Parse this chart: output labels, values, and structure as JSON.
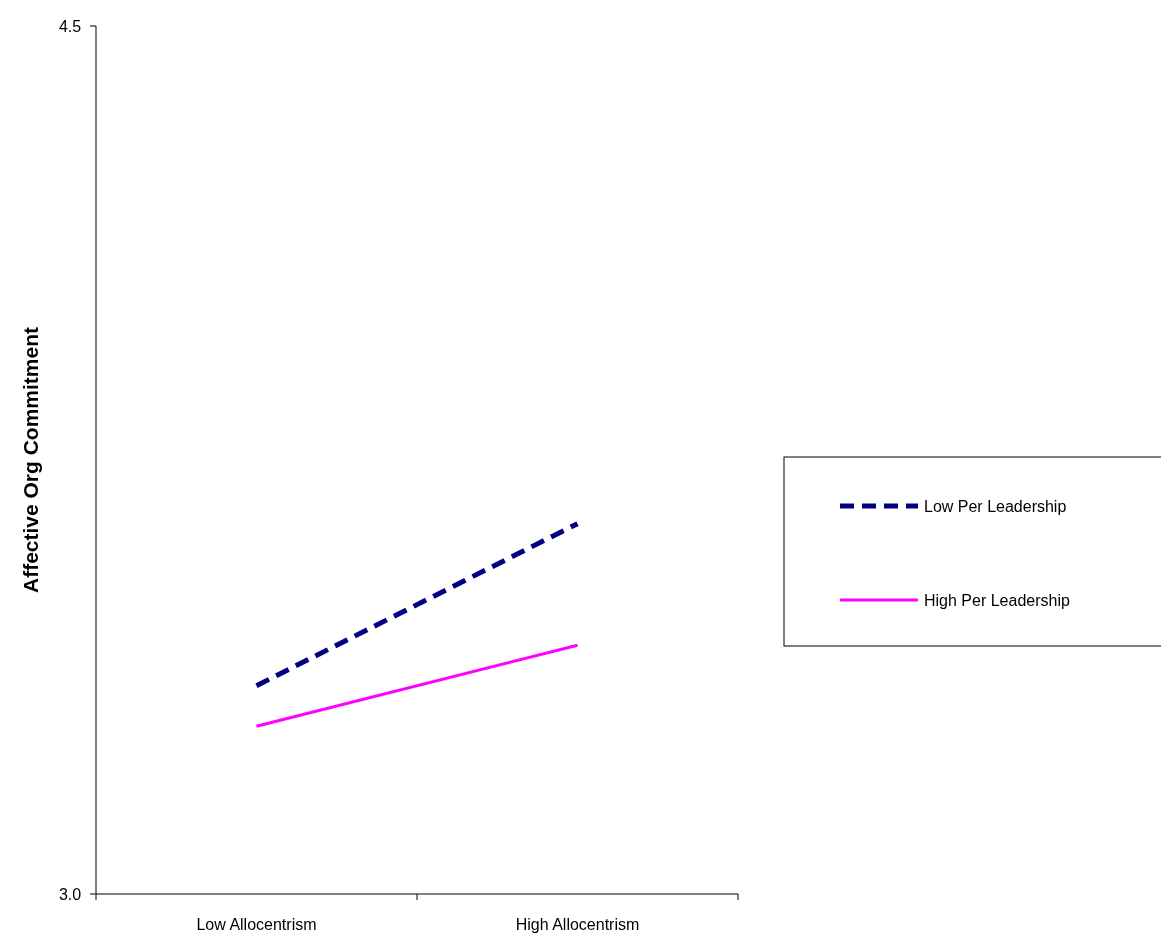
{
  "chart_data": {
    "type": "line",
    "ylabel": "Affective Org Commitment",
    "categories": [
      "Low Allocentrism",
      "High Allocentrism"
    ],
    "ylim": [
      3.0,
      4.5
    ],
    "yticks": [
      {
        "value": 3.0,
        "label": "3.0"
      },
      {
        "value": 4.5,
        "label": "4.5"
      }
    ],
    "grid": false,
    "legend": "right",
    "marker": "none",
    "series": [
      {
        "name": "Low Per Leadership",
        "color": "#000080",
        "line_style": "dashed",
        "values": [
          3.36,
          3.64
        ]
      },
      {
        "name": "High Per Leadership",
        "color": "#ff00ff",
        "line_style": "solid",
        "values": [
          3.29,
          3.43
        ]
      }
    ]
  }
}
